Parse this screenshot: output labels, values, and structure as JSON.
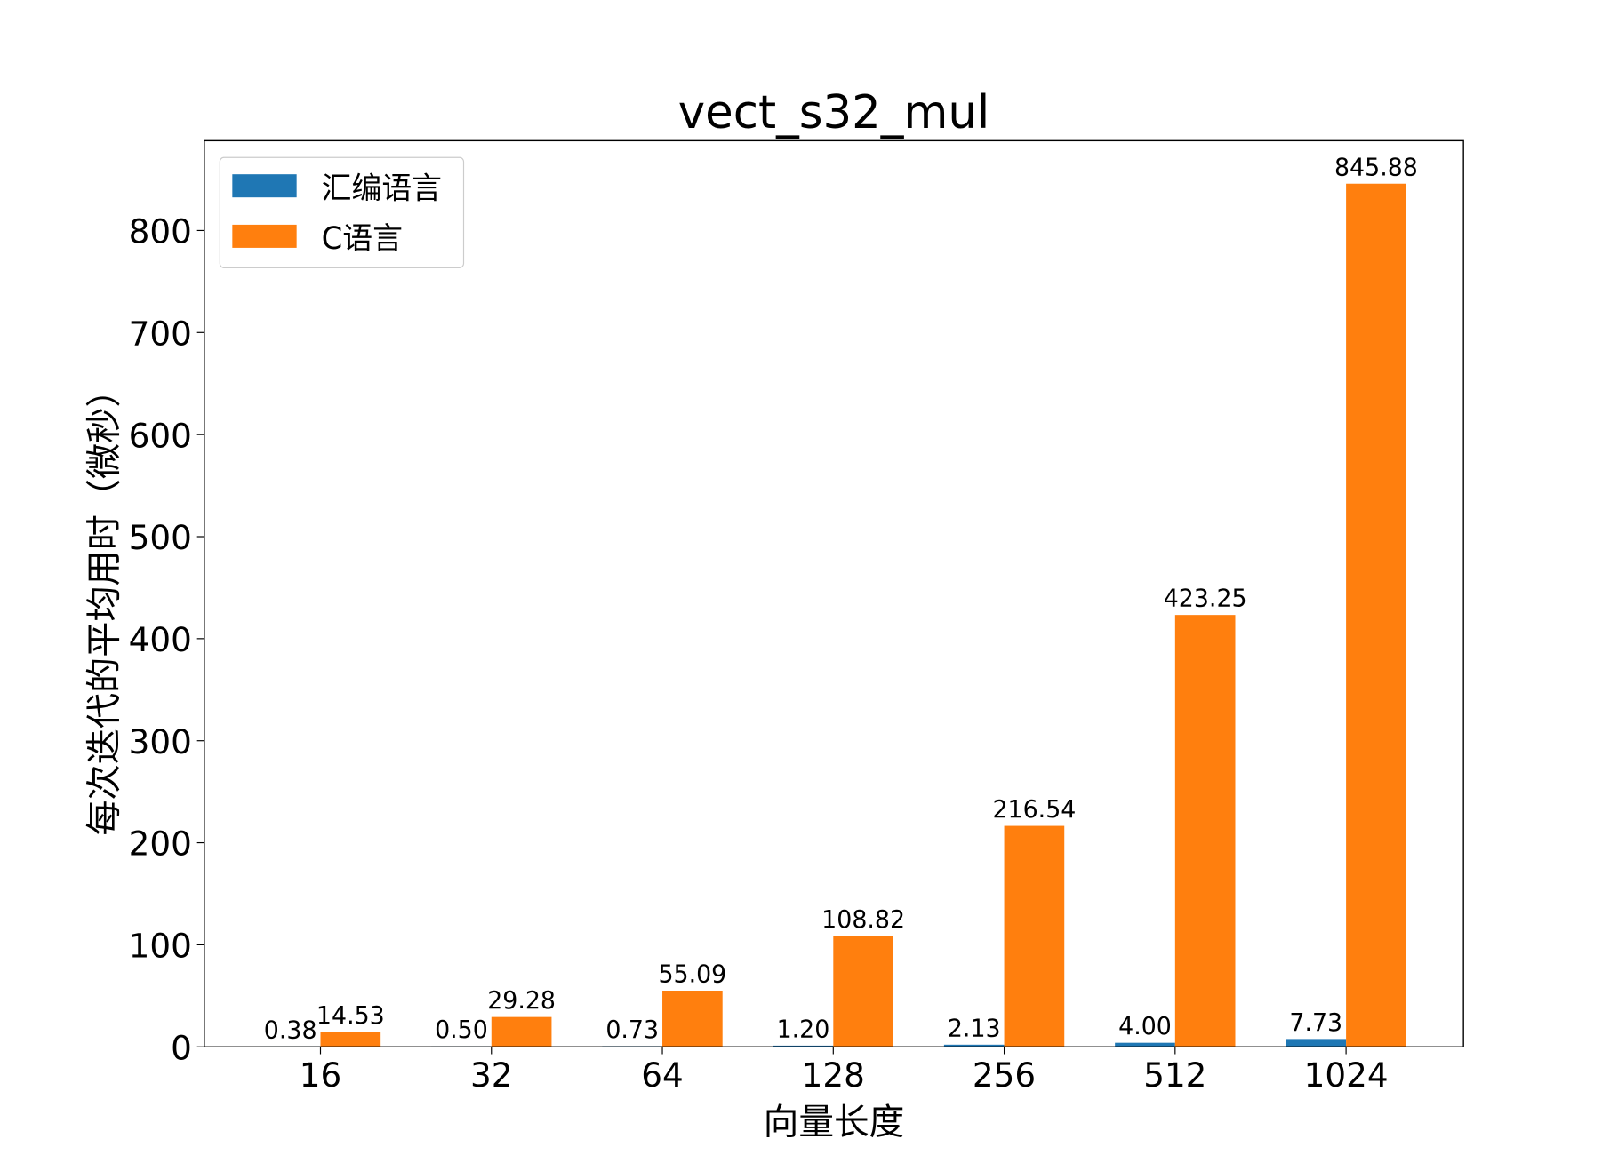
{
  "chart_data": {
    "type": "bar",
    "title": "vect_s32_mul",
    "xlabel": "向量长度",
    "ylabel": "每次迭代的平均用时（微秒）",
    "categories": [
      "16",
      "32",
      "64",
      "128",
      "256",
      "512",
      "1024"
    ],
    "series": [
      {
        "name": "汇编语言",
        "color": "#1f77b4",
        "values": [
          0.38,
          0.5,
          0.73,
          1.2,
          2.13,
          4.0,
          7.73
        ],
        "labels": [
          "0.38",
          "0.50",
          "0.73",
          "1.20",
          "2.13",
          "4.00",
          "7.73"
        ]
      },
      {
        "name": "C语言",
        "color": "#ff7f0e",
        "values": [
          14.53,
          29.28,
          55.09,
          108.82,
          216.54,
          423.25,
          845.88
        ],
        "labels": [
          "14.53",
          "29.28",
          "55.09",
          "108.82",
          "216.54",
          "423.25",
          "845.88"
        ]
      }
    ],
    "ylim": [
      0,
      888
    ],
    "yticks": [
      0,
      100,
      200,
      300,
      400,
      500,
      600,
      700,
      800
    ],
    "grid": false,
    "legend_placement": "top-left"
  }
}
